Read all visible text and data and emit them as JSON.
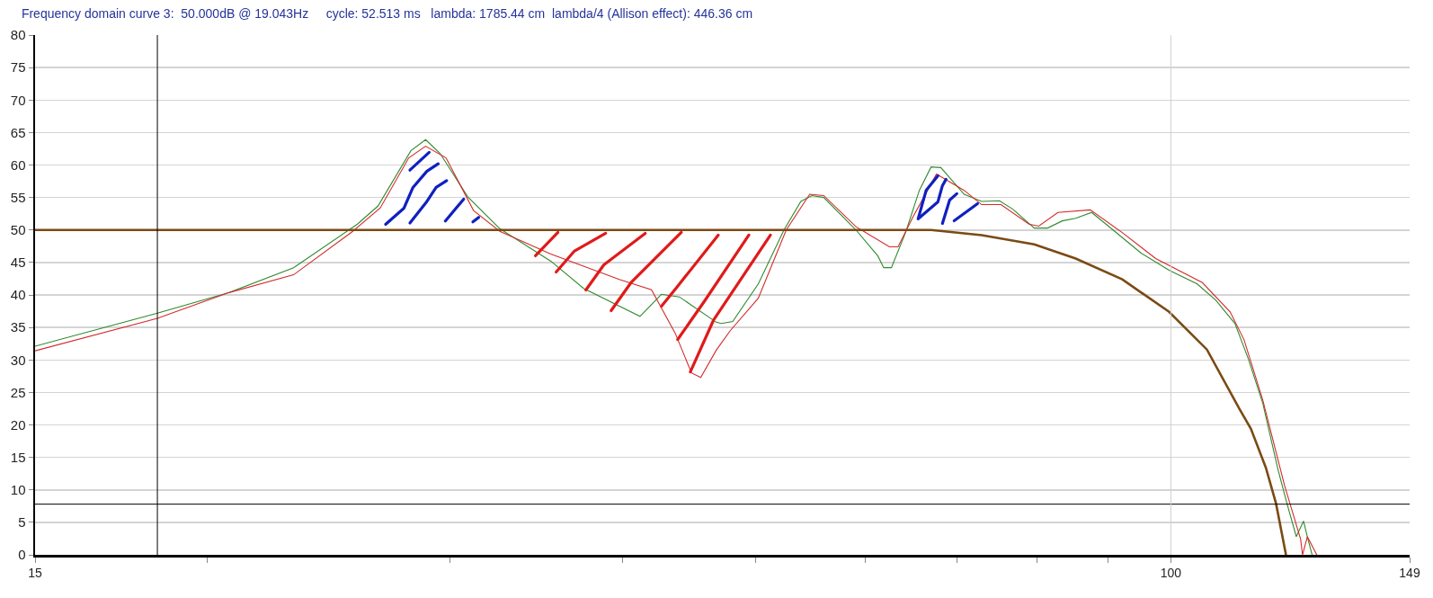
{
  "chart_data": {
    "type": "line",
    "title": "Frequency domain curve 3:  50.000dB @ 19.043Hz     cycle: 52.513 ms   lambda: 1785.44 cm  lambda/4 (Allison effect): 446.36 cm",
    "log": "x",
    "xlim": [
      15,
      149
    ],
    "ylim": [
      0,
      80
    ],
    "xticks": [
      15,
      {
        "value": 20,
        "label": null
      },
      {
        "value": 30,
        "label": null
      },
      {
        "value": 40,
        "label": null
      },
      {
        "value": 50,
        "label": null
      },
      {
        "value": 60,
        "label": null
      },
      {
        "value": 70,
        "label": null
      },
      {
        "value": 80,
        "label": null
      },
      {
        "value": 90,
        "label": null
      },
      100,
      149
    ],
    "yticks": [
      0,
      5,
      10,
      15,
      20,
      25,
      30,
      35,
      40,
      45,
      50,
      55,
      60,
      65,
      70,
      75,
      80
    ],
    "grid": "y",
    "marker": "none",
    "line_style": "solid",
    "ref_lines": [
      {
        "axis": "x",
        "value": 18.4,
        "color": "#000000"
      },
      {
        "axis": "y",
        "value": 7.8,
        "color": "#000000"
      },
      {
        "axis": "x",
        "value": 100,
        "color": "#d0d0d0"
      }
    ],
    "series": [
      {
        "color": "#2e8b2e",
        "x": [
          15,
          18.4,
          20.7,
          23.1,
          25.7,
          26.6,
          28.1,
          28.8,
          29.5,
          30.9,
          32.6,
          35.5,
          37.5,
          41.2,
          42.7,
          44.0,
          46.8,
          47.2,
          48.1,
          50.2,
          52.4,
          53.9,
          54.9,
          56.0,
          59.1,
          61.3,
          61.9,
          62.7,
          64.2,
          65.7,
          67.0,
          68.1,
          70.8,
          72.9,
          75.1,
          76.8,
          79.6,
          81.4,
          83.4,
          85.3,
          87.6,
          90.8,
          95.2,
          99.7,
          104.5,
          107.8,
          111.3,
          113.8,
          116.6,
          119.6,
          121.4,
          123.3,
          124.8,
          125.6,
          126.6
        ],
        "values": [
          32.1,
          37.2,
          40.3,
          44.2,
          50.9,
          53.7,
          62.2,
          63.9,
          61.8,
          55.1,
          50.2,
          45.2,
          41.0,
          36.7,
          40.1,
          39.7,
          35.8,
          35.6,
          35.9,
          41.7,
          50.0,
          54.4,
          55.3,
          55.0,
          50.0,
          46.0,
          44.2,
          44.2,
          49.6,
          56.1,
          59.7,
          59.6,
          55.5,
          54.4,
          54.5,
          53.2,
          50.3,
          50.3,
          51.4,
          51.8,
          52.7,
          50.0,
          46.4,
          43.8,
          41.7,
          39.2,
          35.6,
          30.2,
          23.3,
          13.1,
          7.9,
          2.8,
          5.2,
          2.8,
          0
        ]
      },
      {
        "color": "#d42a2a",
        "x": [
          15,
          18.4,
          20.7,
          23.1,
          25.5,
          26.7,
          28.0,
          28.8,
          29.8,
          31.2,
          32.6,
          35.5,
          39.8,
          42.0,
          43.7,
          44.9,
          45.6,
          46.8,
          47.9,
          50.2,
          52.6,
          54.7,
          56.0,
          59.1,
          62.5,
          63.4,
          65.0,
          67.6,
          70.8,
          72.9,
          75.3,
          78.9,
          80.2,
          82.8,
          87.4,
          92.2,
          97.5,
          105.4,
          110.4,
          113.0,
          116.6,
          120.9,
          122.0,
          124.2,
          124.6,
          125.6,
          127.6
        ],
        "values": [
          31.4,
          36.4,
          40.3,
          43.1,
          49.8,
          53.4,
          61.1,
          62.9,
          61.1,
          53.0,
          49.8,
          46.3,
          42.4,
          40.8,
          34.1,
          28.0,
          27.3,
          31.5,
          34.5,
          39.5,
          50.0,
          55.5,
          55.3,
          50.5,
          47.4,
          47.4,
          52.0,
          58.6,
          56.1,
          53.9,
          53.9,
          50.9,
          50.6,
          52.7,
          53.1,
          49.6,
          45.6,
          41.9,
          37.4,
          33.1,
          23.8,
          10.7,
          7.9,
          2.4,
          0,
          2.8,
          0
        ]
      },
      {
        "color": "#7b4a14",
        "x": [
          15,
          67.0,
          72.9,
          79.6,
          85.3,
          92.2,
          99.7,
          106.2,
          112.1,
          114.3,
          117.2,
          119.2,
          121.2
        ],
        "values": [
          50,
          50,
          49.2,
          47.8,
          45.6,
          42.4,
          37.4,
          31.6,
          22.5,
          19.4,
          13.4,
          7.9,
          0
        ]
      }
    ]
  }
}
